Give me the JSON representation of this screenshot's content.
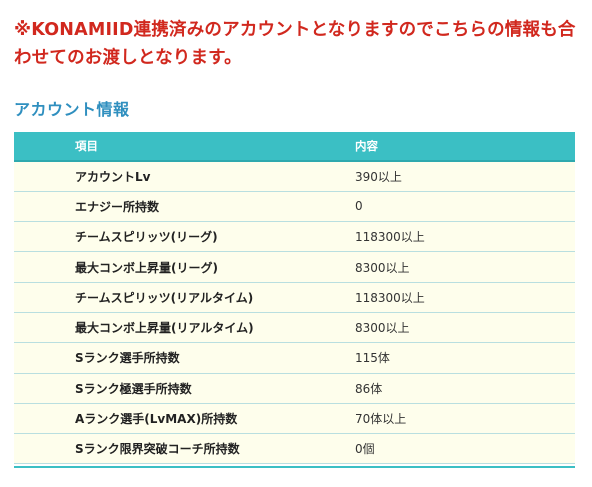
{
  "notice": "※KONAMIID連携済みのアカウントとなりますのでこちらの情報も合わせてのお渡しとなります。",
  "section_title": "アカウント情報",
  "table": {
    "headers": {
      "item": "項目",
      "value": "内容"
    },
    "rows": [
      {
        "item": "アカウントLv",
        "value": "390以上"
      },
      {
        "item": "エナジー所持数",
        "value": "0"
      },
      {
        "item": "チームスピリッツ(リーグ)",
        "value": "118300以上"
      },
      {
        "item": "最大コンボ上昇量(リーグ)",
        "value": "8300以上"
      },
      {
        "item": "チームスピリッツ(リアルタイム)",
        "value": "118300以上"
      },
      {
        "item": "最大コンボ上昇量(リアルタイム)",
        "value": "8300以上"
      },
      {
        "item": "Sランク選手所持数",
        "value": "115体"
      },
      {
        "item": "Sランク極選手所持数",
        "value": "86体"
      },
      {
        "item": "Aランク選手(LvMAX)所持数",
        "value": "70体以上"
      },
      {
        "item": "Sランク限界突破コーチ所持数",
        "value": "0個"
      }
    ]
  },
  "colors": {
    "notice_text": "#d1281e",
    "section_title": "#2f8fbf",
    "header_bg": "#3bbfc4",
    "row_bg": "#fefeec"
  }
}
